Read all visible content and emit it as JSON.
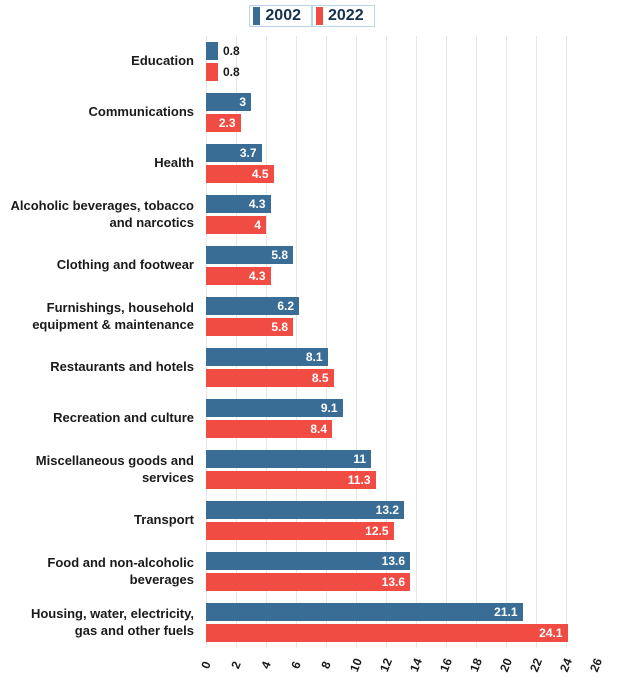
{
  "legend": [
    {
      "label": "2002",
      "color": "#3a6d96"
    },
    {
      "label": "2022",
      "color": "#f14c44"
    }
  ],
  "chart_data": {
    "type": "bar",
    "orientation": "horizontal",
    "title": "",
    "xlabel": "",
    "ylabel": "",
    "categories": [
      "Education",
      "Communications",
      "Health",
      "Alcoholic beverages, tobacco and narcotics",
      "Clothing and footwear",
      "Furnishings, household equipment & maintenance",
      "Restaurants and hotels",
      "Recreation and culture",
      "Miscellaneous goods and services",
      "Transport",
      "Food and non-alcoholic beverages",
      "Housing, water, electricity, gas and other fuels"
    ],
    "series": [
      {
        "name": "2002",
        "color": "#3a6d96",
        "values": [
          0.8,
          3,
          3.7,
          4.3,
          5.8,
          6.2,
          8.1,
          9.1,
          11,
          13.2,
          13.6,
          21.1
        ]
      },
      {
        "name": "2022",
        "color": "#f14c44",
        "values": [
          0.8,
          2.3,
          4.5,
          4,
          4.3,
          5.8,
          8.5,
          8.4,
          11.3,
          12.5,
          13.6,
          24.1
        ]
      }
    ],
    "xlim": [
      0,
      26
    ],
    "xticks": [
      0,
      2,
      4,
      6,
      8,
      10,
      12,
      14,
      16,
      18,
      20,
      22,
      24,
      26
    ],
    "grid": true,
    "legend_position": "top",
    "value_labels_shown": true
  }
}
